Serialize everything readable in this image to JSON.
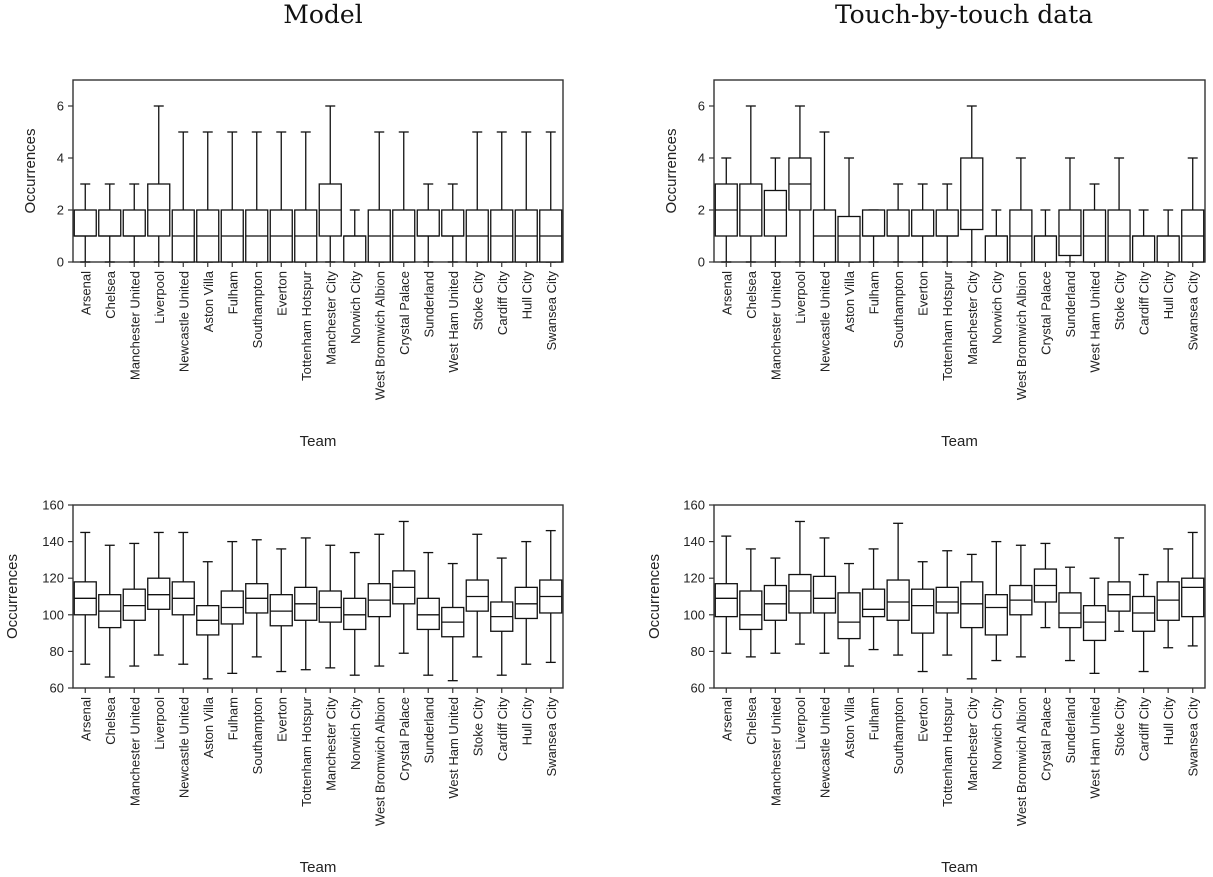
{
  "titles": {
    "left": "Model",
    "right": "Touch-by-touch data"
  },
  "chart_data": [
    {
      "type": "boxplot",
      "title": "Model",
      "xlabel": "Team",
      "ylabel": "Occurrences",
      "ylim": [
        0,
        7
      ],
      "yticks": [
        0,
        2,
        4,
        6
      ],
      "categories": [
        "Arsenal",
        "Chelsea",
        "Manchester United",
        "Liverpool",
        "Newcastle United",
        "Aston Villa",
        "Fulham",
        "Southampton",
        "Everton",
        "Tottenham Hotspur",
        "Manchester City",
        "Norwich City",
        "West Bromwich Albion",
        "Crystal Palace",
        "Sunderland",
        "West Ham United",
        "Stoke City",
        "Cardiff City",
        "Hull City",
        "Swansea City"
      ],
      "boxes": [
        {
          "whislo": 0,
          "q1": 1,
          "med": 1,
          "q3": 2,
          "whishi": 3
        },
        {
          "whislo": 0,
          "q1": 1,
          "med": 1,
          "q3": 2,
          "whishi": 3
        },
        {
          "whislo": 0,
          "q1": 1,
          "med": 1,
          "q3": 2,
          "whishi": 3
        },
        {
          "whislo": 0,
          "q1": 1,
          "med": 2,
          "q3": 3,
          "whishi": 6
        },
        {
          "whislo": 0,
          "q1": 0,
          "med": 1,
          "q3": 2,
          "whishi": 5
        },
        {
          "whislo": 0,
          "q1": 0,
          "med": 1,
          "q3": 2,
          "whishi": 5
        },
        {
          "whislo": 0,
          "q1": 0,
          "med": 1,
          "q3": 2,
          "whishi": 5
        },
        {
          "whislo": 0,
          "q1": 0,
          "med": 1,
          "q3": 2,
          "whishi": 5
        },
        {
          "whislo": 0,
          "q1": 0,
          "med": 1,
          "q3": 2,
          "whishi": 5
        },
        {
          "whislo": 0,
          "q1": 0,
          "med": 1,
          "q3": 2,
          "whishi": 5
        },
        {
          "whislo": 0,
          "q1": 1,
          "med": 2,
          "q3": 3,
          "whishi": 6
        },
        {
          "whislo": 0,
          "q1": 0,
          "med": 1,
          "q3": 1,
          "whishi": 2
        },
        {
          "whislo": 0,
          "q1": 0,
          "med": 1,
          "q3": 2,
          "whishi": 5
        },
        {
          "whislo": 0,
          "q1": 0,
          "med": 1,
          "q3": 2,
          "whishi": 5
        },
        {
          "whislo": 0,
          "q1": 1,
          "med": 1,
          "q3": 2,
          "whishi": 3
        },
        {
          "whislo": 0,
          "q1": 1,
          "med": 1,
          "q3": 2,
          "whishi": 3
        },
        {
          "whislo": 0,
          "q1": 0,
          "med": 1,
          "q3": 2,
          "whishi": 5
        },
        {
          "whislo": 0,
          "q1": 0,
          "med": 1,
          "q3": 2,
          "whishi": 5
        },
        {
          "whislo": 0,
          "q1": 0,
          "med": 1,
          "q3": 2,
          "whishi": 5
        },
        {
          "whislo": 0,
          "q1": 0,
          "med": 1,
          "q3": 2,
          "whishi": 5
        }
      ]
    },
    {
      "type": "boxplot",
      "title": "Touch-by-touch data",
      "xlabel": "Team",
      "ylabel": "Occurrences",
      "ylim": [
        0,
        7
      ],
      "yticks": [
        0,
        2,
        4,
        6
      ],
      "categories": [
        "Arsenal",
        "Chelsea",
        "Manchester United",
        "Liverpool",
        "Newcastle United",
        "Aston Villa",
        "Fulham",
        "Southampton",
        "Everton",
        "Tottenham Hotspur",
        "Manchester City",
        "Norwich City",
        "West Bromwich Albion",
        "Crystal Palace",
        "Sunderland",
        "West Ham United",
        "Stoke City",
        "Cardiff City",
        "Hull City",
        "Swansea City"
      ],
      "boxes": [
        {
          "whislo": 0,
          "q1": 1,
          "med": 2,
          "q3": 3,
          "whishi": 4
        },
        {
          "whislo": 0,
          "q1": 1,
          "med": 2,
          "q3": 3,
          "whishi": 6
        },
        {
          "whislo": 0,
          "q1": 1,
          "med": 2,
          "q3": 2.75,
          "whishi": 4
        },
        {
          "whislo": 0,
          "q1": 2,
          "med": 3,
          "q3": 4,
          "whishi": 6
        },
        {
          "whislo": 0,
          "q1": 0,
          "med": 1,
          "q3": 2,
          "whishi": 5
        },
        {
          "whislo": 0,
          "q1": 0,
          "med": 1,
          "q3": 1.75,
          "whishi": 4
        },
        {
          "whislo": 0,
          "q1": 1,
          "med": 1,
          "q3": 2,
          "whishi": 2
        },
        {
          "whislo": 0,
          "q1": 1,
          "med": 1,
          "q3": 2,
          "whishi": 3
        },
        {
          "whislo": 0,
          "q1": 1,
          "med": 1,
          "q3": 2,
          "whishi": 3
        },
        {
          "whislo": 0,
          "q1": 1,
          "med": 1,
          "q3": 2,
          "whishi": 3
        },
        {
          "whislo": 0,
          "q1": 1.25,
          "med": 2,
          "q3": 4,
          "whishi": 6
        },
        {
          "whislo": 0,
          "q1": 0,
          "med": 1,
          "q3": 1,
          "whishi": 2
        },
        {
          "whislo": 0,
          "q1": 0,
          "med": 1,
          "q3": 2,
          "whishi": 4
        },
        {
          "whislo": 0,
          "q1": 0,
          "med": 1,
          "q3": 1,
          "whishi": 2
        },
        {
          "whislo": 0,
          "q1": 0.25,
          "med": 1,
          "q3": 2,
          "whishi": 4
        },
        {
          "whislo": 0,
          "q1": 0,
          "med": 1,
          "q3": 2,
          "whishi": 3
        },
        {
          "whislo": 0,
          "q1": 0,
          "med": 1,
          "q3": 2,
          "whishi": 4
        },
        {
          "whislo": 0,
          "q1": 0,
          "med": 1,
          "q3": 1,
          "whishi": 2
        },
        {
          "whislo": 0,
          "q1": 0,
          "med": 1,
          "q3": 1,
          "whishi": 2
        },
        {
          "whislo": 0,
          "q1": 0,
          "med": 1,
          "q3": 2,
          "whishi": 4
        }
      ]
    },
    {
      "type": "boxplot",
      "title": "",
      "xlabel": "Team",
      "ylabel": "Occurrences",
      "ylim": [
        60,
        160
      ],
      "yticks": [
        60,
        80,
        100,
        120,
        140,
        160
      ],
      "categories": [
        "Arsenal",
        "Chelsea",
        "Manchester United",
        "Liverpool",
        "Newcastle United",
        "Aston Villa",
        "Fulham",
        "Southampton",
        "Everton",
        "Tottenham Hotspur",
        "Manchester City",
        "Norwich City",
        "West Bromwich Albion",
        "Crystal Palace",
        "Sunderland",
        "West Ham United",
        "Stoke City",
        "Cardiff City",
        "Hull City",
        "Swansea City"
      ],
      "boxes": [
        {
          "whislo": 73,
          "q1": 100,
          "med": 109,
          "q3": 118,
          "whishi": 145
        },
        {
          "whislo": 66,
          "q1": 93,
          "med": 102,
          "q3": 111,
          "whishi": 138
        },
        {
          "whislo": 72,
          "q1": 97,
          "med": 105,
          "q3": 114,
          "whishi": 139
        },
        {
          "whislo": 78,
          "q1": 103,
          "med": 111,
          "q3": 120,
          "whishi": 145
        },
        {
          "whislo": 73,
          "q1": 100,
          "med": 109,
          "q3": 118,
          "whishi": 145
        },
        {
          "whislo": 65,
          "q1": 89,
          "med": 97,
          "q3": 105,
          "whishi": 129
        },
        {
          "whislo": 68,
          "q1": 95,
          "med": 104,
          "q3": 113,
          "whishi": 140
        },
        {
          "whislo": 77,
          "q1": 101,
          "med": 109,
          "q3": 117,
          "whishi": 141
        },
        {
          "whislo": 69,
          "q1": 94,
          "med": 102,
          "q3": 111,
          "whishi": 136
        },
        {
          "whislo": 70,
          "q1": 97,
          "med": 106,
          "q3": 115,
          "whishi": 142
        },
        {
          "whislo": 71,
          "q1": 96,
          "med": 104,
          "q3": 113,
          "whishi": 138
        },
        {
          "whislo": 67,
          "q1": 92,
          "med": 100,
          "q3": 109,
          "whishi": 134
        },
        {
          "whislo": 72,
          "q1": 99,
          "med": 108,
          "q3": 117,
          "whishi": 144
        },
        {
          "whislo": 79,
          "q1": 106,
          "med": 115,
          "q3": 124,
          "whishi": 151
        },
        {
          "whislo": 67,
          "q1": 92,
          "med": 100,
          "q3": 109,
          "whishi": 134
        },
        {
          "whislo": 64,
          "q1": 88,
          "med": 96,
          "q3": 104,
          "whishi": 128
        },
        {
          "whislo": 77,
          "q1": 102,
          "med": 110,
          "q3": 119,
          "whishi": 144
        },
        {
          "whislo": 67,
          "q1": 91,
          "med": 99,
          "q3": 107,
          "whishi": 131
        },
        {
          "whislo": 73,
          "q1": 98,
          "med": 106,
          "q3": 115,
          "whishi": 140
        },
        {
          "whislo": 74,
          "q1": 101,
          "med": 110,
          "q3": 119,
          "whishi": 146
        }
      ]
    },
    {
      "type": "boxplot",
      "title": "",
      "xlabel": "Team",
      "ylabel": "Occurrences",
      "ylim": [
        60,
        160
      ],
      "yticks": [
        60,
        80,
        100,
        120,
        140,
        160
      ],
      "categories": [
        "Arsenal",
        "Chelsea",
        "Manchester United",
        "Liverpool",
        "Newcastle United",
        "Aston Villa",
        "Fulham",
        "Southampton",
        "Everton",
        "Tottenham Hotspur",
        "Manchester City",
        "Norwich City",
        "West Bromwich Albion",
        "Crystal Palace",
        "Sunderland",
        "West Ham United",
        "Stoke City",
        "Cardiff City",
        "Hull City",
        "Swansea City"
      ],
      "boxes": [
        {
          "whislo": 79,
          "q1": 99,
          "med": 109,
          "q3": 117,
          "whishi": 143
        },
        {
          "whislo": 77,
          "q1": 92,
          "med": 100,
          "q3": 113,
          "whishi": 136
        },
        {
          "whislo": 79,
          "q1": 97,
          "med": 106,
          "q3": 116,
          "whishi": 131
        },
        {
          "whislo": 84,
          "q1": 101,
          "med": 113,
          "q3": 122,
          "whishi": 151
        },
        {
          "whislo": 79,
          "q1": 101,
          "med": 109,
          "q3": 121,
          "whishi": 142
        },
        {
          "whislo": 72,
          "q1": 87,
          "med": 96,
          "q3": 112,
          "whishi": 128
        },
        {
          "whislo": 81,
          "q1": 99,
          "med": 103,
          "q3": 114,
          "whishi": 136
        },
        {
          "whislo": 78,
          "q1": 97,
          "med": 107,
          "q3": 119,
          "whishi": 150
        },
        {
          "whislo": 69,
          "q1": 90,
          "med": 105,
          "q3": 114,
          "whishi": 129
        },
        {
          "whislo": 78,
          "q1": 101,
          "med": 107,
          "q3": 115,
          "whishi": 135
        },
        {
          "whislo": 65,
          "q1": 93,
          "med": 106,
          "q3": 118,
          "whishi": 133
        },
        {
          "whislo": 75,
          "q1": 89,
          "med": 104,
          "q3": 111,
          "whishi": 140
        },
        {
          "whislo": 77,
          "q1": 100,
          "med": 108,
          "q3": 116,
          "whishi": 138
        },
        {
          "whislo": 93,
          "q1": 107,
          "med": 116,
          "q3": 125,
          "whishi": 139
        },
        {
          "whislo": 75,
          "q1": 93,
          "med": 101,
          "q3": 112,
          "whishi": 126
        },
        {
          "whislo": 68,
          "q1": 86,
          "med": 96,
          "q3": 105,
          "whishi": 120
        },
        {
          "whislo": 91,
          "q1": 102,
          "med": 111,
          "q3": 118,
          "whishi": 142
        },
        {
          "whislo": 69,
          "q1": 91,
          "med": 101,
          "q3": 110,
          "whishi": 122
        },
        {
          "whislo": 82,
          "q1": 97,
          "med": 108,
          "q3": 118,
          "whishi": 136
        },
        {
          "whislo": 83,
          "q1": 99,
          "med": 115,
          "q3": 120,
          "whishi": 145
        }
      ]
    }
  ]
}
